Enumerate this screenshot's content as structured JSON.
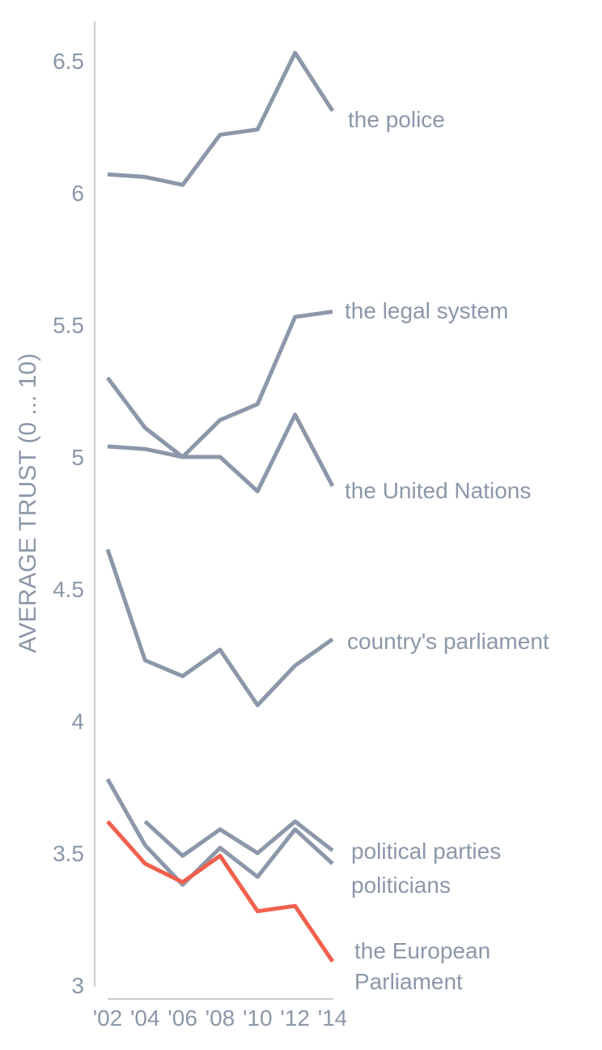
{
  "chart_data": {
    "type": "line",
    "ylabel": "AVERAGE TRUST (0 ... 10)",
    "ylim": [
      3,
      6.65
    ],
    "yticks": [
      "3",
      "3.5",
      "4",
      "4.5",
      "5",
      "5.5",
      "6",
      "6.5"
    ],
    "x": [
      2002,
      2004,
      2006,
      2008,
      2010,
      2012,
      2014
    ],
    "xtick_labels": [
      "'02",
      "'04",
      "'06",
      "'08",
      "'10",
      "'12",
      "'14"
    ],
    "colors": {
      "default": "#8c97a9",
      "highlight": "#f0604d",
      "axis": "#cccccc"
    },
    "series": [
      {
        "name": "the police",
        "values": [
          6.07,
          6.06,
          6.03,
          6.22,
          6.24,
          6.53,
          6.31
        ]
      },
      {
        "name": "the legal system",
        "values": [
          5.04,
          5.03,
          5.0,
          5.14,
          5.2,
          5.53,
          5.55
        ]
      },
      {
        "name": "the United Nations",
        "values": [
          5.3,
          5.11,
          5.0,
          5.0,
          4.87,
          5.16,
          4.89
        ]
      },
      {
        "name": "country's parliament",
        "values": [
          4.65,
          4.23,
          4.17,
          4.27,
          4.06,
          4.21,
          4.31
        ]
      },
      {
        "name": "political parties",
        "values": [
          null,
          3.62,
          3.49,
          3.59,
          3.5,
          3.62,
          3.51
        ]
      },
      {
        "name": "politicians",
        "values": [
          3.78,
          3.53,
          3.38,
          3.52,
          3.41,
          3.59,
          3.46
        ]
      },
      {
        "name": "the European Parliament",
        "label_lines": [
          "the European",
          "Parliament"
        ],
        "highlight": true,
        "values": [
          3.62,
          3.46,
          3.39,
          3.49,
          3.28,
          3.3,
          3.09
        ]
      }
    ]
  }
}
